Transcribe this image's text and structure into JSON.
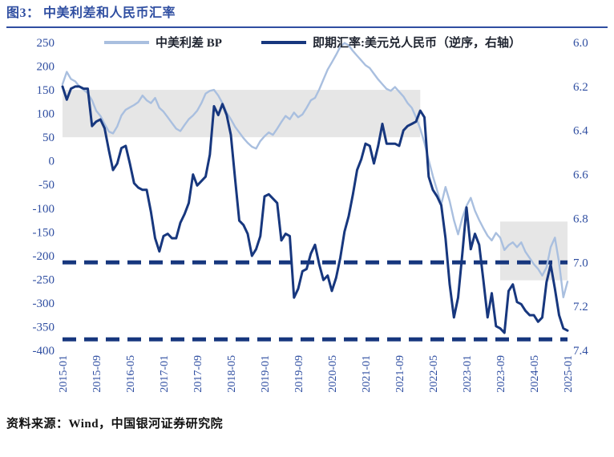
{
  "header": {
    "title": "图3： 中美利差和人民币汇率"
  },
  "footer": {
    "source": "资料来源：Wind，中国银河证券研究院"
  },
  "colors": {
    "accent_blue": "#2F4EA1",
    "series_light": "#A9BFDF",
    "series_navy": "#17377E",
    "band_gray": "#E6E6E6"
  },
  "chart_data": {
    "type": "line",
    "title": "中美利差和人民币汇率",
    "legend": [
      {
        "label": "中美利差 BP",
        "color": "#A9BFDF",
        "axis": "left"
      },
      {
        "label": "即期汇率:美元兑人民币（逆序，右轴）",
        "color": "#17377E",
        "axis": "right"
      }
    ],
    "left_axis": {
      "min": -400,
      "max": 250,
      "step": 50,
      "ticks": [
        250,
        200,
        150,
        100,
        50,
        0,
        -50,
        -100,
        -150,
        -200,
        -250,
        -300,
        -350,
        -400
      ]
    },
    "right_axis": {
      "min": 6.0,
      "max": 7.4,
      "step": 0.2,
      "inverted": true,
      "ticks": [
        "6.0",
        "6.2",
        "6.4",
        "6.6",
        "6.8",
        "7.0",
        "7.2",
        "7.4"
      ]
    },
    "x_axis": {
      "start": "2015-01",
      "end": "2025-01",
      "frequency": "monthly",
      "ticks": [
        {
          "index": 0,
          "label": "2015-01"
        },
        {
          "index": 8,
          "label": "2015-09"
        },
        {
          "index": 16,
          "label": "2016-05"
        },
        {
          "index": 24,
          "label": "2017-01"
        },
        {
          "index": 32,
          "label": "2017-09"
        },
        {
          "index": 40,
          "label": "2018-05"
        },
        {
          "index": 48,
          "label": "2019-01"
        },
        {
          "index": 56,
          "label": "2019-09"
        },
        {
          "index": 64,
          "label": "2020-05"
        },
        {
          "index": 72,
          "label": "2021-01"
        },
        {
          "index": 80,
          "label": "2021-09"
        },
        {
          "index": 88,
          "label": "2022-05"
        },
        {
          "index": 96,
          "label": "2023-01"
        },
        {
          "index": 104,
          "label": "2023-09"
        },
        {
          "index": 112,
          "label": "2024-05"
        },
        {
          "index": 120,
          "label": "2025-01"
        }
      ]
    },
    "series": [
      {
        "name": "中美利差 BP",
        "axis": "left",
        "color": "#A9BFDF",
        "values": [
          162,
          188,
          173,
          168,
          157,
          150,
          143,
          128,
          106,
          95,
          78,
          62,
          58,
          73,
          96,
          108,
          113,
          118,
          124,
          138,
          128,
          122,
          133,
          112,
          104,
          92,
          80,
          68,
          63,
          76,
          88,
          96,
          106,
          122,
          142,
          148,
          150,
          138,
          122,
          102,
          88,
          72,
          60,
          48,
          38,
          30,
          26,
          42,
          52,
          60,
          55,
          68,
          82,
          95,
          88,
          102,
          92,
          98,
          112,
          128,
          133,
          151,
          172,
          193,
          208,
          224,
          241,
          249,
          244,
          232,
          222,
          212,
          202,
          196,
          184,
          172,
          162,
          152,
          148,
          156,
          146,
          136,
          122,
          112,
          92,
          68,
          38,
          2,
          -32,
          -62,
          -92,
          -55,
          -85,
          -125,
          -155,
          -120,
          -95,
          -78,
          -105,
          -125,
          -142,
          -158,
          -168,
          -152,
          -162,
          -188,
          -178,
          -172,
          -182,
          -172,
          -192,
          -205,
          -218,
          -228,
          -242,
          -225,
          -182,
          -162,
          -215,
          -288,
          -255
        ]
      },
      {
        "name": "即期汇率:美元兑人民币（逆序，右轴）",
        "axis": "right",
        "color": "#17377E",
        "values": [
          6.2,
          6.26,
          6.21,
          6.2,
          6.2,
          6.21,
          6.21,
          6.38,
          6.36,
          6.35,
          6.39,
          6.49,
          6.58,
          6.55,
          6.48,
          6.47,
          6.55,
          6.64,
          6.66,
          6.67,
          6.67,
          6.77,
          6.89,
          6.95,
          6.88,
          6.87,
          6.89,
          6.89,
          6.82,
          6.78,
          6.73,
          6.6,
          6.65,
          6.63,
          6.61,
          6.51,
          6.29,
          6.33,
          6.28,
          6.33,
          6.42,
          6.62,
          6.81,
          6.83,
          6.87,
          6.97,
          6.94,
          6.88,
          6.7,
          6.69,
          6.71,
          6.73,
          6.9,
          6.87,
          6.88,
          7.16,
          7.12,
          7.04,
          7.03,
          6.96,
          6.92,
          7.01,
          7.08,
          7.06,
          7.13,
          7.07,
          6.98,
          6.86,
          6.79,
          6.69,
          6.58,
          6.53,
          6.46,
          6.47,
          6.55,
          6.47,
          6.37,
          6.46,
          6.46,
          6.46,
          6.47,
          6.4,
          6.38,
          6.37,
          6.36,
          6.31,
          6.34,
          6.61,
          6.67,
          6.7,
          6.74,
          6.89,
          7.1,
          7.25,
          7.16,
          6.96,
          6.75,
          6.94,
          6.87,
          6.92,
          7.08,
          7.25,
          7.14,
          7.29,
          7.3,
          7.32,
          7.13,
          7.1,
          7.18,
          7.19,
          7.22,
          7.24,
          7.24,
          7.27,
          7.25,
          7.09,
          7.01,
          7.12,
          7.24,
          7.3,
          7.31
        ]
      }
    ],
    "bands": [
      {
        "axis": "left",
        "from": 150,
        "to": 50,
        "x_start_index": 0,
        "x_end_index": 85,
        "color": "#E6E6E6"
      },
      {
        "axis": "left",
        "from": -128,
        "to": -252,
        "x_start_index": 104,
        "x_end_index": 120,
        "color": "#E6E6E6"
      }
    ],
    "dashed_lines": [
      {
        "axis": "right",
        "value": 7.0,
        "color": "#17377E"
      },
      {
        "axis": "right",
        "value": 7.35,
        "color": "#17377E"
      }
    ]
  }
}
